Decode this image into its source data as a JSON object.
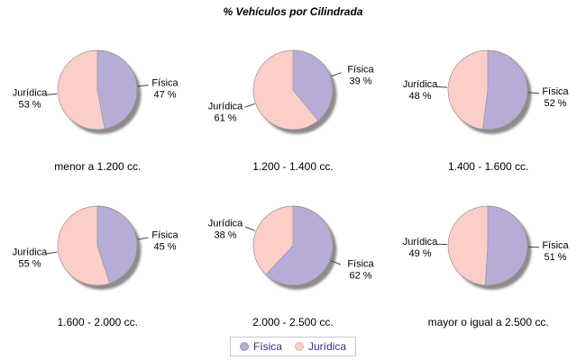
{
  "title": "% Vehículos por Cilindrada",
  "colors": {
    "fisica": "#b7acd6",
    "juridica": "#fbcec9",
    "slice_outline": "#9c9093",
    "shadow": "#8c8c8c",
    "leader_line": "#444444",
    "legend_text": "#3d2b85",
    "legend_border": "#c6c6d6"
  },
  "legend": {
    "items": [
      {
        "label": "Física",
        "color": "#b7acd6"
      },
      {
        "label": "Jurídica",
        "color": "#fbcec9"
      }
    ]
  },
  "chart_data": [
    {
      "type": "pie",
      "title": "menor a 1.200 cc.",
      "labels": [
        "Física",
        "Jurídica"
      ],
      "values": [
        47,
        53
      ],
      "value_labels": [
        "47 %",
        "53 %"
      ]
    },
    {
      "type": "pie",
      "title": "1.200 - 1.400 cc.",
      "labels": [
        "Física",
        "Jurídica"
      ],
      "values": [
        39,
        61
      ],
      "value_labels": [
        "39 %",
        "61 %"
      ]
    },
    {
      "type": "pie",
      "title": "1.400 - 1.600 cc.",
      "labels": [
        "Física",
        "Jurídica"
      ],
      "values": [
        52,
        48
      ],
      "value_labels": [
        "52 %",
        "48 %"
      ]
    },
    {
      "type": "pie",
      "title": "1.600 - 2.000 cc.",
      "labels": [
        "Física",
        "Jurídica"
      ],
      "values": [
        45,
        55
      ],
      "value_labels": [
        "45 %",
        "55 %"
      ]
    },
    {
      "type": "pie",
      "title": "2.000 - 2.500 cc.",
      "labels": [
        "Física",
        "Jurídica"
      ],
      "values": [
        62,
        38
      ],
      "value_labels": [
        "62 %",
        "38 %"
      ]
    },
    {
      "type": "pie",
      "title": "mayor o igual a 2.500 cc.",
      "labels": [
        "Física",
        "Jurídica"
      ],
      "values": [
        51,
        49
      ],
      "value_labels": [
        "51 %",
        "49 %"
      ]
    }
  ]
}
